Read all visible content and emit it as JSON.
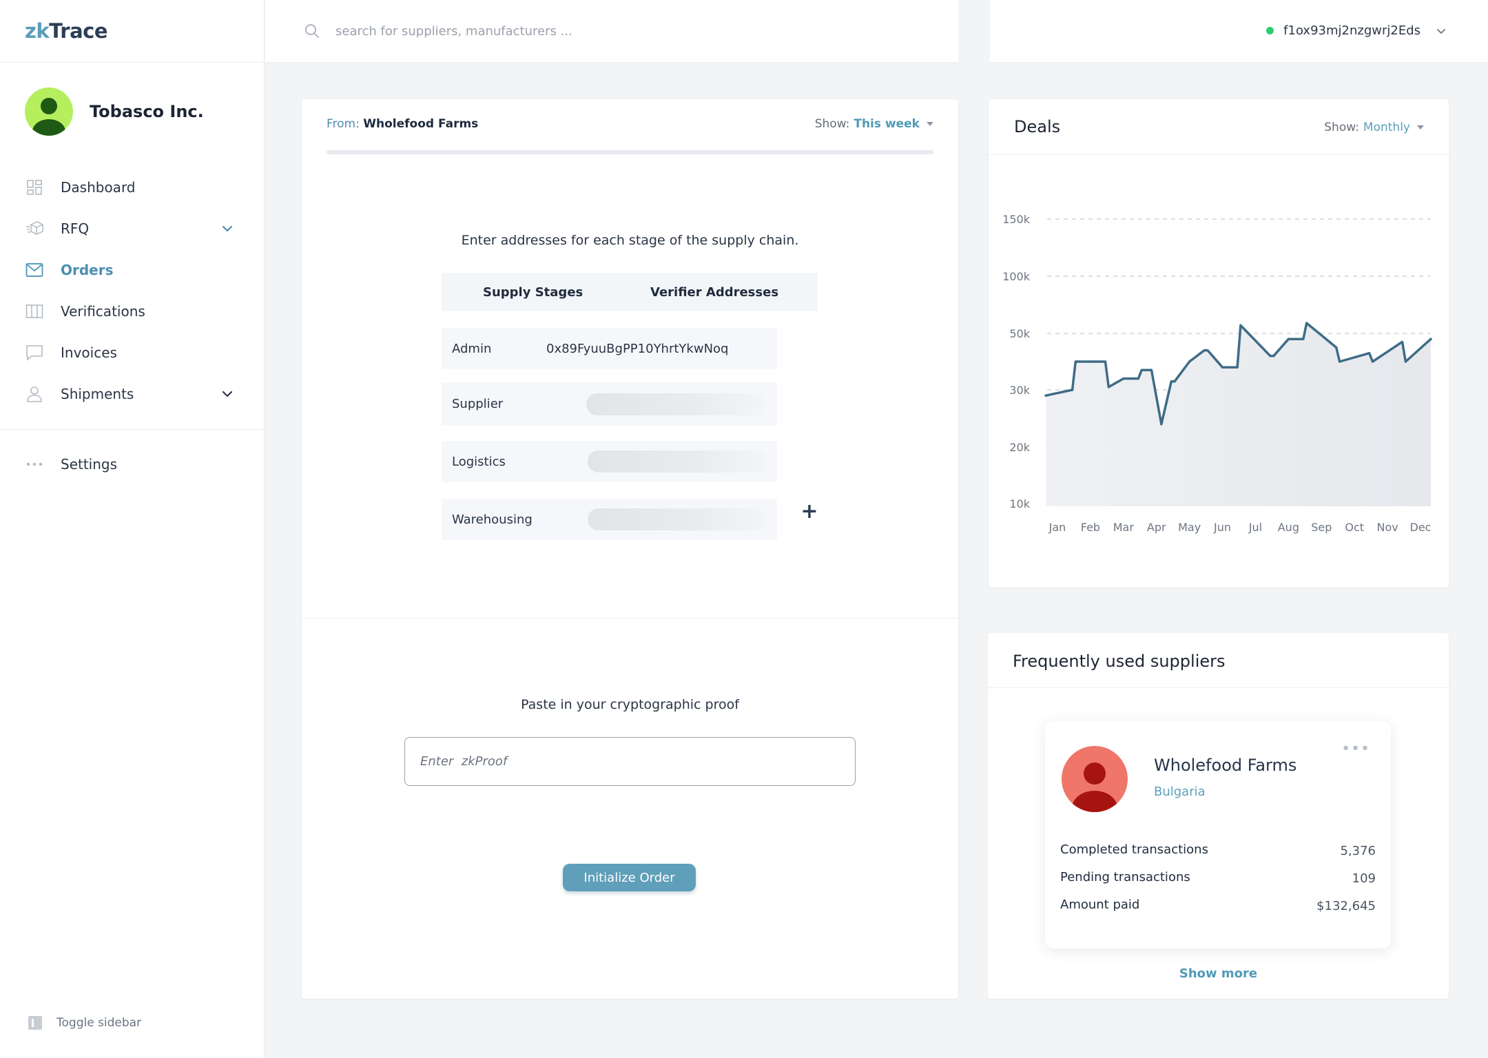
{
  "app": {
    "logo_prefix": "zk",
    "logo_suffix": "Trace",
    "company_name": "Tobasco Inc."
  },
  "colors": {
    "accent": "#5a9cb7",
    "online": "#2ecc71",
    "chart_line": "#3f6c87",
    "supplier_avatar": "#f0766a"
  },
  "sidebar": {
    "items": [
      {
        "label": "Dashboard",
        "icon": "dashboard-icon",
        "active": false,
        "expandable": false
      },
      {
        "label": "RFQ",
        "icon": "box-icon",
        "active": false,
        "expandable": true
      },
      {
        "label": "Orders",
        "icon": "mail-icon",
        "active": true,
        "expandable": false
      },
      {
        "label": "Verifications",
        "icon": "columns-icon",
        "active": false,
        "expandable": false
      },
      {
        "label": "Invoices",
        "icon": "chat-icon",
        "active": false,
        "expandable": false
      },
      {
        "label": "Shipments",
        "icon": "user-icon",
        "active": false,
        "expandable": true
      }
    ],
    "settings_label": "Settings",
    "toggle_label": "Toggle sidebar"
  },
  "search": {
    "placeholder": "search for suppliers, manufacturers ..."
  },
  "account": {
    "address": "f1ox93mj2nzgwrj2Eds",
    "status": "online"
  },
  "order": {
    "from_label": "From:",
    "from_value": "Wholefood Farms",
    "show_label": "Show:",
    "show_value": "This week",
    "instruction": "Enter addresses for each stage of the supply chain.",
    "col_stage": "Supply Stages",
    "col_address": "Verifier Addresses",
    "stages": [
      {
        "name": "Admin",
        "address": "0x89FyuuBgPP10YhrtYkwNoq"
      },
      {
        "name": "Supplier",
        "address": ""
      },
      {
        "name": "Logistics",
        "address": ""
      },
      {
        "name": "Warehousing",
        "address": ""
      }
    ],
    "add_stage": "+",
    "proof_label": "Paste in your cryptographic proof",
    "proof_placeholder": "Enter  zkProof",
    "submit_label": "Initialize Order"
  },
  "deals": {
    "title": "Deals",
    "show_label": "Show:",
    "show_value": "Monthly"
  },
  "chart_data": {
    "type": "area",
    "title": "Deals",
    "xlabel": "",
    "ylabel": "",
    "grid": true,
    "y_ticks": [
      "150k",
      "100k",
      "50k",
      "30k",
      "20k",
      "10k"
    ],
    "categories": [
      "Jan",
      "Feb",
      "Mar",
      "Apr",
      "May",
      "Jun",
      "Jul",
      "Aug",
      "Sep",
      "Oct",
      "Nov",
      "Dec"
    ],
    "series": [
      {
        "values": [
          {
            "x": "Jan",
            "y": 29
          },
          {
            "x": "Jan",
            "y": 30
          },
          {
            "x": "Feb",
            "y": 40
          },
          {
            "x": "Feb",
            "y": 40
          },
          {
            "x": "Mar",
            "y": 31
          },
          {
            "x": "Mar",
            "y": 34
          },
          {
            "x": "Mar",
            "y": 34
          },
          {
            "x": "Apr",
            "y": 37
          },
          {
            "x": "Apr",
            "y": 37
          },
          {
            "x": "Apr",
            "y": 24
          },
          {
            "x": "Apr",
            "y": 33
          },
          {
            "x": "May",
            "y": 33
          },
          {
            "x": "May",
            "y": 40
          },
          {
            "x": "May",
            "y": 44
          },
          {
            "x": "Jun",
            "y": 44
          },
          {
            "x": "Jun",
            "y": 38
          },
          {
            "x": "Jun",
            "y": 38
          },
          {
            "x": "Jul",
            "y": 57
          },
          {
            "x": "Jul",
            "y": 42
          },
          {
            "x": "Aug",
            "y": 42
          },
          {
            "x": "Aug",
            "y": 48
          },
          {
            "x": "Aug",
            "y": 48
          },
          {
            "x": "Sep",
            "y": 59
          },
          {
            "x": "Sep",
            "y": 45
          },
          {
            "x": "Oct",
            "y": 40
          },
          {
            "x": "Oct",
            "y": 43
          },
          {
            "x": "Nov",
            "y": 40
          },
          {
            "x": "Nov",
            "y": 47
          },
          {
            "x": "Dec",
            "y": 40
          },
          {
            "x": "Dec",
            "y": 48
          }
        ]
      }
    ]
  },
  "suppliers": {
    "title": "Frequently used suppliers",
    "card": {
      "name": "Wholefood Farms",
      "country": "Bulgaria",
      "stats": [
        {
          "label": "Completed transactions",
          "value": "5,376"
        },
        {
          "label": "Pending transactions",
          "value": "109"
        },
        {
          "label": "Amount paid",
          "value": "$132,645"
        }
      ]
    },
    "show_more": "Show more"
  }
}
